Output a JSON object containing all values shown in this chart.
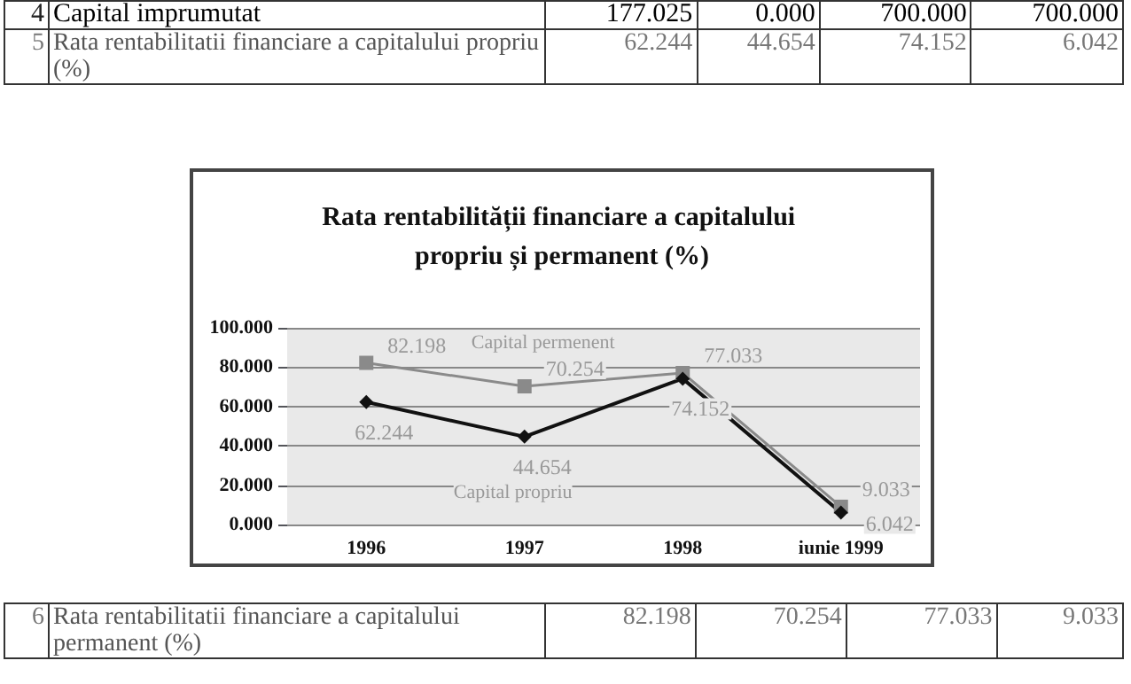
{
  "chart_data": {
    "type": "line",
    "title": "Rata rentabilității financiare a capitalului propriu și permanent (%)",
    "categories": [
      "1996",
      "1997",
      "1998",
      "iunie 1999"
    ],
    "series": [
      {
        "name": "Capital permenent",
        "color": "#8a8a8a",
        "marker": "square",
        "values": [
          82.198,
          70.254,
          77.033,
          9.033
        ]
      },
      {
        "name": "Capital propriu",
        "color": "#111111",
        "marker": "diamond",
        "values": [
          62.244,
          44.654,
          74.152,
          6.042
        ]
      }
    ],
    "ylim": [
      0,
      100
    ],
    "yticks": [
      {
        "value": 0,
        "label": "0.000"
      },
      {
        "value": 20,
        "label": "20.000"
      },
      {
        "value": 40,
        "label": "40.000"
      },
      {
        "value": 60,
        "label": "60.000"
      },
      {
        "value": 80,
        "label": "80.000"
      },
      {
        "value": 100,
        "label": "100.000"
      }
    ],
    "grid": "y",
    "data_labels": true,
    "legend": false,
    "annotations": [
      "4",
      "Capital imprumutat",
      "177.025",
      "0.000",
      "700.000",
      "700.000",
      "5",
      "Rata rentabilitatii financiare a capitalului propriu (%)",
      "62.244",
      "44.654",
      "74.152",
      "6.042",
      "6",
      "Rata rentabilitatii financiare a capitalului permanent (%)",
      "82.198",
      "70.254",
      "77.033",
      "9.033"
    ]
  }
}
